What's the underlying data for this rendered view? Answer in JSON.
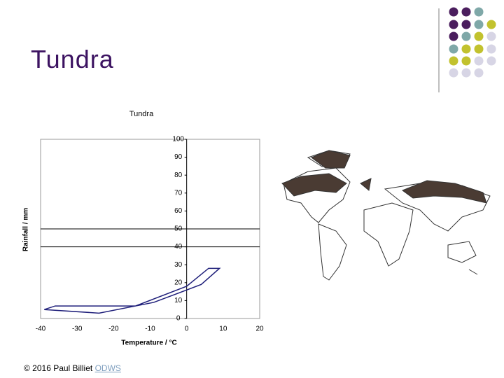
{
  "slide_title": "Tundra",
  "footer": {
    "copyright": "© 2016 Paul Billiet",
    "link": "ODWS"
  },
  "chart_data": {
    "type": "line",
    "title": "Tundra",
    "x_label": "Temperature / °C",
    "y_label": "Rainfall / mm",
    "x": [
      -39,
      -36,
      -14,
      0,
      6,
      9,
      4,
      -9,
      -24,
      -39
    ],
    "values": [
      5,
      7,
      7,
      18,
      28,
      28,
      19,
      9,
      3,
      5
    ],
    "color": "#1f1f7a",
    "xlim": [
      -40,
      20
    ],
    "xticks": [
      -40,
      -30,
      -20,
      -10,
      0,
      10,
      20
    ],
    "ylim": [
      0,
      100
    ],
    "yticks": [
      0,
      10,
      20,
      30,
      40,
      50,
      60,
      70,
      80,
      90,
      100
    ],
    "hlines": [
      50,
      40
    ]
  }
}
